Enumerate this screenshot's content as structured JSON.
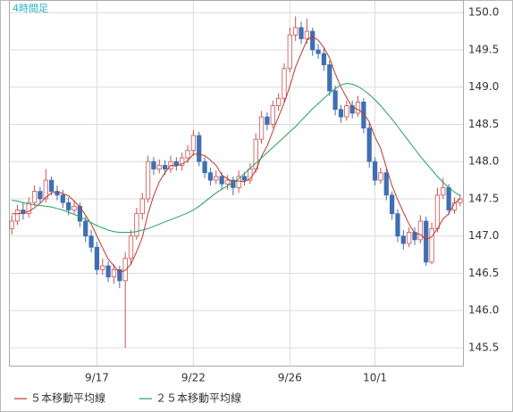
{
  "chart_data": {
    "type": "candlestick",
    "title": "4時間足",
    "categories": [
      null,
      null,
      null,
      null,
      null,
      null,
      null,
      null,
      null,
      null,
      null,
      null,
      null,
      null,
      null,
      "9/17",
      null,
      null,
      null,
      null,
      null,
      null,
      null,
      null,
      null,
      null,
      null,
      null,
      null,
      null,
      null,
      null,
      "9/22",
      null,
      null,
      null,
      null,
      null,
      null,
      null,
      null,
      null,
      null,
      null,
      null,
      null,
      null,
      null,
      null,
      "9/26",
      null,
      null,
      null,
      null,
      null,
      null,
      null,
      null,
      null,
      null,
      null,
      null,
      null,
      null,
      "10/1",
      null,
      null,
      null,
      null,
      null,
      null,
      null,
      null,
      null,
      null,
      null,
      null,
      null,
      null,
      null
    ],
    "open": [
      147.1,
      147.2,
      147.35,
      147.3,
      147.45,
      147.6,
      147.5,
      147.75,
      147.6,
      147.55,
      147.45,
      147.35,
      147.4,
      147.2,
      147.0,
      146.85,
      146.55,
      146.6,
      146.45,
      146.55,
      146.4,
      146.7,
      147.0,
      147.3,
      147.5,
      148.0,
      147.9,
      147.95,
      147.9,
      148.0,
      147.95,
      148.05,
      148.15,
      148.35,
      148.0,
      147.85,
      147.75,
      147.8,
      147.7,
      147.75,
      147.65,
      147.8,
      147.75,
      147.9,
      148.3,
      148.6,
      148.5,
      148.75,
      148.85,
      149.25,
      149.7,
      149.8,
      149.65,
      149.75,
      149.5,
      149.45,
      149.3,
      148.95,
      148.7,
      148.6,
      148.75,
      148.65,
      148.8,
      148.45,
      148.0,
      147.75,
      147.85,
      147.55,
      147.3,
      147.0,
      146.9,
      147.05,
      146.95,
      147.2,
      146.65,
      147.1,
      147.55,
      147.65,
      147.35,
      147.45
    ],
    "high": [
      147.28,
      147.42,
      147.45,
      147.52,
      147.68,
      147.66,
      147.9,
      147.8,
      147.68,
      147.62,
      147.52,
      147.48,
      147.45,
      147.26,
      147.08,
      146.92,
      146.7,
      146.66,
      146.62,
      146.6,
      146.78,
      147.08,
      147.38,
      147.58,
      148.08,
      148.06,
      148.03,
      148.02,
      148.08,
      148.06,
      148.12,
      148.22,
      148.42,
      148.4,
      148.06,
      147.92,
      147.88,
      147.86,
      147.82,
      147.8,
      147.88,
      147.86,
      147.98,
      148.38,
      148.68,
      148.66,
      148.82,
      148.92,
      149.32,
      149.8,
      149.95,
      149.88,
      149.92,
      149.8,
      149.58,
      149.52,
      149.36,
      149.02,
      148.76,
      148.82,
      148.82,
      148.88,
      148.85,
      148.52,
      148.06,
      147.92,
      147.9,
      147.6,
      147.36,
      147.08,
      147.12,
      147.12,
      147.28,
      147.26,
      147.18,
      147.65,
      147.78,
      147.7,
      147.52,
      147.56
    ],
    "low": [
      147.02,
      147.15,
      147.22,
      147.25,
      147.4,
      147.44,
      147.45,
      147.55,
      147.48,
      147.38,
      147.28,
      147.3,
      147.12,
      146.92,
      146.78,
      146.48,
      146.48,
      146.38,
      146.36,
      146.3,
      145.5,
      146.62,
      146.95,
      147.22,
      147.45,
      147.82,
      147.84,
      147.82,
      147.85,
      147.88,
      147.88,
      147.98,
      148.08,
      147.94,
      147.78,
      147.68,
      147.7,
      147.62,
      147.62,
      147.55,
      147.58,
      147.68,
      147.7,
      147.85,
      148.24,
      148.42,
      148.45,
      148.68,
      148.8,
      149.2,
      149.62,
      149.58,
      149.58,
      149.42,
      149.38,
      149.22,
      148.88,
      148.62,
      148.52,
      148.55,
      148.58,
      148.6,
      148.38,
      147.92,
      147.68,
      147.7,
      147.48,
      147.22,
      146.92,
      146.82,
      146.85,
      146.88,
      146.9,
      146.6,
      146.62,
      147.05,
      147.5,
      147.28,
      147.3,
      147.4
    ],
    "close": [
      147.2,
      147.35,
      147.3,
      147.45,
      147.6,
      147.5,
      147.75,
      147.6,
      147.55,
      147.45,
      147.35,
      147.4,
      147.2,
      147.0,
      146.85,
      146.55,
      146.6,
      146.45,
      146.55,
      146.4,
      146.7,
      147.0,
      147.3,
      147.5,
      148.0,
      147.9,
      147.95,
      147.9,
      148.0,
      147.95,
      148.05,
      148.15,
      148.35,
      148.0,
      147.85,
      147.75,
      147.8,
      147.7,
      147.75,
      147.65,
      147.8,
      147.75,
      147.9,
      148.3,
      148.6,
      148.5,
      148.75,
      148.85,
      149.25,
      149.7,
      149.8,
      149.65,
      149.75,
      149.5,
      149.45,
      149.3,
      148.95,
      148.7,
      148.6,
      148.75,
      148.65,
      148.8,
      148.45,
      148.0,
      147.75,
      147.85,
      147.55,
      147.3,
      147.0,
      146.9,
      147.05,
      146.95,
      147.2,
      146.65,
      147.1,
      147.55,
      147.65,
      147.35,
      147.45,
      147.5
    ],
    "up_color": "#d05050",
    "down_color": "#3f6fb3",
    "series": [
      {
        "name": "５本移動平均線",
        "color": "#c0392b",
        "values": [
          147.3,
          147.3,
          147.31,
          147.33,
          147.38,
          147.44,
          147.52,
          147.58,
          147.6,
          147.57,
          147.54,
          147.47,
          147.39,
          147.28,
          147.16,
          147.0,
          146.84,
          146.69,
          146.6,
          146.51,
          146.54,
          146.62,
          146.79,
          146.98,
          147.3,
          147.54,
          147.73,
          147.85,
          147.95,
          147.94,
          147.97,
          148.01,
          148.1,
          148.1,
          148.08,
          148.02,
          147.95,
          147.82,
          147.77,
          147.73,
          147.74,
          147.73,
          147.77,
          147.88,
          148.07,
          148.21,
          148.41,
          148.6,
          148.79,
          149.01,
          149.27,
          149.45,
          149.63,
          149.68,
          149.63,
          149.53,
          149.39,
          149.18,
          149.0,
          148.86,
          148.73,
          148.7,
          148.65,
          148.53,
          148.33,
          148.18,
          147.92,
          147.68,
          147.49,
          147.32,
          147.16,
          147.04,
          147.02,
          146.95,
          146.99,
          147.1,
          147.23,
          147.3,
          147.44,
          147.5
        ]
      },
      {
        "name": "２５本移動平均線",
        "color": "#27a060",
        "values": [
          147.48,
          147.47,
          147.45,
          147.43,
          147.42,
          147.41,
          147.4,
          147.39,
          147.37,
          147.35,
          147.32,
          147.29,
          147.26,
          147.22,
          147.18,
          147.14,
          147.11,
          147.08,
          147.06,
          147.05,
          147.05,
          147.05,
          147.06,
          147.08,
          147.1,
          147.13,
          147.16,
          147.19,
          147.22,
          147.25,
          147.28,
          147.31,
          147.35,
          147.4,
          147.46,
          147.52,
          147.58,
          147.63,
          147.67,
          147.72,
          147.77,
          147.84,
          147.91,
          147.98,
          148.05,
          148.12,
          148.19,
          148.26,
          148.33,
          148.4,
          148.47,
          148.55,
          148.63,
          148.71,
          148.78,
          148.85,
          148.92,
          148.98,
          149.03,
          149.05,
          149.04,
          149.01,
          148.96,
          148.9,
          148.83,
          148.75,
          148.66,
          148.57,
          148.47,
          148.37,
          148.27,
          148.17,
          148.07,
          147.98,
          147.89,
          147.8,
          147.72,
          147.65,
          147.59,
          147.54
        ]
      }
    ],
    "ylim": [
      145.26,
      150.17
    ],
    "yticks": [
      145.5,
      {
        "value": 146,
        "label": "146.0"
      },
      146.5,
      {
        "value": 147,
        "label": "147.0"
      },
      147.5,
      {
        "value": 148,
        "label": "148.0"
      },
      148.5,
      {
        "value": 149,
        "label": "149.0"
      },
      149.5,
      {
        "value": 150,
        "label": "150.0"
      }
    ],
    "grid": true
  }
}
